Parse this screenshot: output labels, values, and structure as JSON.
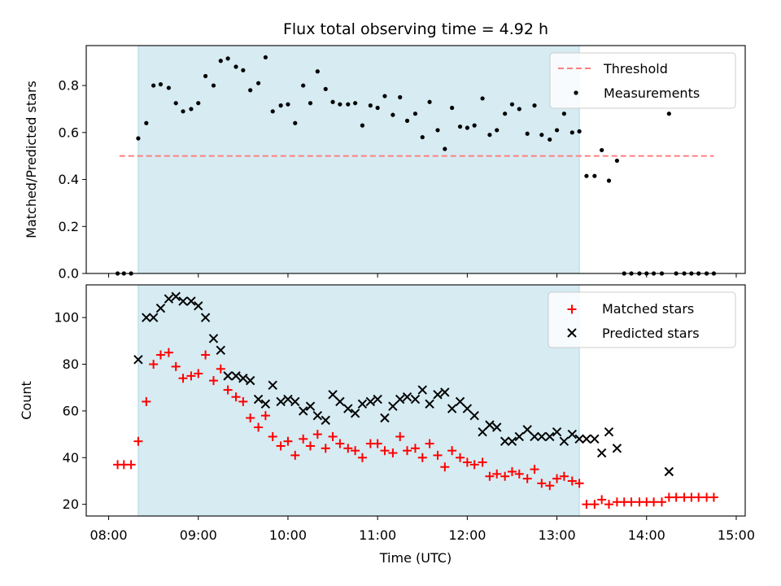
{
  "chart_data": [
    {
      "type": "scatter",
      "title": "Flux total observing time = 4.92 h",
      "ylabel": "Matched/Predicted stars",
      "xlim": [
        7.75,
        15.1
      ],
      "ylim": [
        0,
        0.97
      ],
      "yticks": [
        0.0,
        0.2,
        0.4,
        0.6,
        0.8
      ],
      "yticklabels": [
        "0.0",
        "0.2",
        "0.4",
        "0.6",
        "0.8"
      ],
      "xticks": [
        8,
        9,
        10,
        11,
        12,
        13,
        14,
        15
      ],
      "observing_window": [
        8.33,
        13.25
      ],
      "legend_position": "upper right",
      "grid": false,
      "threshold": {
        "name": "Threshold",
        "value": 0.5,
        "x_range": [
          8.12,
          14.75
        ],
        "color": "#ff7f7f",
        "style": "dashed"
      },
      "series": [
        {
          "name": "Measurements",
          "marker": "dot",
          "color": "#000000",
          "x": [
            8.1,
            8.17,
            8.25,
            8.33,
            8.42,
            8.5,
            8.58,
            8.67,
            8.75,
            8.83,
            8.92,
            9.0,
            9.08,
            9.17,
            9.25,
            9.33,
            9.42,
            9.5,
            9.58,
            9.67,
            9.75,
            9.83,
            9.92,
            10.0,
            10.08,
            10.17,
            10.25,
            10.33,
            10.42,
            10.5,
            10.58,
            10.67,
            10.75,
            10.83,
            10.92,
            11.0,
            11.08,
            11.17,
            11.25,
            11.33,
            11.42,
            11.5,
            11.58,
            11.67,
            11.75,
            11.83,
            11.92,
            12.0,
            12.08,
            12.17,
            12.25,
            12.33,
            12.42,
            12.5,
            12.58,
            12.67,
            12.75,
            12.83,
            12.92,
            13.0,
            13.08,
            13.17,
            13.25,
            13.33,
            13.42,
            13.5,
            13.58,
            13.67,
            13.75,
            13.83,
            13.92,
            14.0,
            14.08,
            14.17,
            14.25,
            14.33,
            14.42,
            14.5,
            14.58,
            14.67,
            14.75
          ],
          "y": [
            0,
            0,
            0,
            0.575,
            0.64,
            0.8,
            0.805,
            0.79,
            0.725,
            0.69,
            0.7,
            0.725,
            0.84,
            0.8,
            0.905,
            0.915,
            0.88,
            0.865,
            0.78,
            0.81,
            0.92,
            0.69,
            0.715,
            0.72,
            0.64,
            0.8,
            0.725,
            0.86,
            0.785,
            0.73,
            0.72,
            0.72,
            0.725,
            0.63,
            0.715,
            0.705,
            0.755,
            0.675,
            0.75,
            0.65,
            0.68,
            0.58,
            0.73,
            0.61,
            0.53,
            0.705,
            0.625,
            0.62,
            0.63,
            0.745,
            0.59,
            0.61,
            0.68,
            0.72,
            0.7,
            0.595,
            0.715,
            0.59,
            0.57,
            0.61,
            0.68,
            0.6,
            0.605,
            0.415,
            0.415,
            0.525,
            0.395,
            0.48,
            0,
            0,
            0,
            0,
            0,
            0,
            0.68,
            0,
            0,
            0,
            0,
            0,
            0
          ]
        }
      ]
    },
    {
      "type": "scatter",
      "ylabel": "Count",
      "xlabel": "Time (UTC)",
      "xlim": [
        7.75,
        15.1
      ],
      "ylim": [
        15,
        114
      ],
      "yticks": [
        20,
        40,
        60,
        80,
        100
      ],
      "yticklabels": [
        "20",
        "40",
        "60",
        "80",
        "100"
      ],
      "xticks": [
        8,
        9,
        10,
        11,
        12,
        13,
        14,
        15
      ],
      "xticklabels": [
        "08:00",
        "09:00",
        "10:00",
        "11:00",
        "12:00",
        "13:00",
        "14:00",
        "15:00"
      ],
      "observing_window": [
        8.33,
        13.25
      ],
      "legend_position": "upper right",
      "grid": false,
      "series": [
        {
          "name": "Matched stars",
          "marker": "plus",
          "color": "#ff0000",
          "x": [
            8.1,
            8.17,
            8.25,
            8.33,
            8.42,
            8.5,
            8.58,
            8.67,
            8.75,
            8.83,
            8.92,
            9.0,
            9.08,
            9.17,
            9.25,
            9.33,
            9.42,
            9.5,
            9.58,
            9.67,
            9.75,
            9.83,
            9.92,
            10.0,
            10.08,
            10.17,
            10.25,
            10.33,
            10.42,
            10.5,
            10.58,
            10.67,
            10.75,
            10.83,
            10.92,
            11.0,
            11.08,
            11.17,
            11.25,
            11.33,
            11.42,
            11.5,
            11.58,
            11.67,
            11.75,
            11.83,
            11.92,
            12.0,
            12.08,
            12.17,
            12.25,
            12.33,
            12.42,
            12.5,
            12.58,
            12.67,
            12.75,
            12.83,
            12.92,
            13.0,
            13.08,
            13.17,
            13.25,
            13.33,
            13.42,
            13.5,
            13.58,
            13.67,
            13.75,
            13.83,
            13.92,
            14.0,
            14.08,
            14.17,
            14.25,
            14.33,
            14.42,
            14.5,
            14.58,
            14.67,
            14.75
          ],
          "y": [
            37,
            37,
            37,
            47,
            64,
            80,
            84,
            85,
            79,
            74,
            75,
            76,
            84,
            73,
            78,
            69,
            66,
            64,
            57,
            53,
            58,
            49,
            45,
            47,
            41,
            48,
            45,
            50,
            44,
            49,
            46,
            44,
            43,
            40,
            46,
            46,
            43,
            42,
            49,
            43,
            44,
            40,
            46,
            41,
            36,
            43,
            40,
            38,
            37,
            38,
            32,
            33,
            32,
            34,
            33,
            31,
            35,
            29,
            28,
            31,
            32,
            30,
            29,
            20,
            20,
            22,
            20,
            21,
            21,
            21,
            21,
            21,
            21,
            21,
            23,
            23,
            23,
            23,
            23,
            23,
            23
          ]
        },
        {
          "name": "Predicted stars",
          "marker": "x",
          "color": "#000000",
          "x": [
            8.33,
            8.42,
            8.5,
            8.58,
            8.67,
            8.75,
            8.83,
            8.92,
            9.0,
            9.08,
            9.17,
            9.25,
            9.33,
            9.42,
            9.5,
            9.58,
            9.67,
            9.75,
            9.83,
            9.92,
            10.0,
            10.08,
            10.17,
            10.25,
            10.33,
            10.42,
            10.5,
            10.58,
            10.67,
            10.75,
            10.83,
            10.92,
            11.0,
            11.08,
            11.17,
            11.25,
            11.33,
            11.42,
            11.5,
            11.58,
            11.67,
            11.75,
            11.83,
            11.92,
            12.0,
            12.08,
            12.17,
            12.25,
            12.33,
            12.42,
            12.5,
            12.58,
            12.67,
            12.75,
            12.83,
            12.92,
            13.0,
            13.08,
            13.17,
            13.25,
            13.33,
            13.42,
            13.5,
            13.58,
            13.67,
            14.25
          ],
          "y": [
            82,
            100,
            100,
            104,
            108,
            109,
            107,
            107,
            105,
            100,
            91,
            86,
            75,
            75,
            74,
            73,
            65,
            63,
            71,
            64,
            65,
            64,
            60,
            62,
            58,
            56,
            67,
            64,
            61,
            59,
            63,
            64,
            65,
            57,
            62,
            65,
            66,
            65,
            69,
            63,
            67,
            68,
            61,
            64,
            61,
            58,
            51,
            54,
            53,
            47,
            47,
            49,
            52,
            49,
            49,
            49,
            51,
            47,
            50,
            48,
            48,
            48,
            42,
            51,
            44,
            34
          ]
        }
      ]
    }
  ],
  "colors": {
    "window_fill": "#add8e6",
    "window_edge": "#add8e6"
  }
}
